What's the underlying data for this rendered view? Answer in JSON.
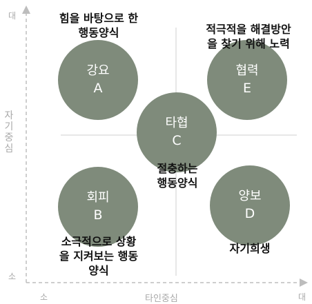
{
  "axes": {
    "y_title": "자기중심",
    "y_top": "대",
    "y_bottom": "소",
    "x_title": "타인중심",
    "x_left": "소",
    "x_right": "대",
    "axis_color": "#bdbdbd"
  },
  "styles": {
    "circle_color": "#7f8b7b",
    "circle_text_color": "#ffffff",
    "desc_text_color": "#111111"
  },
  "circles": {
    "a": {
      "name": "강요",
      "letter": "A"
    },
    "e": {
      "name": "협력",
      "letter": "E"
    },
    "c": {
      "name": "타협",
      "letter": "C"
    },
    "b": {
      "name": "회피",
      "letter": "B"
    },
    "d": {
      "name": "양보",
      "letter": "D"
    }
  },
  "descriptions": {
    "a": [
      "힘을 바탕으로 한",
      "행동양식"
    ],
    "e": [
      "적극적을 해결방안",
      "을 찾기 위해 노력"
    ],
    "c": [
      "절충하는",
      "행동양식"
    ],
    "b": [
      "소극적으로 상황",
      "을 지켜보는 행동",
      "양식"
    ],
    "d": [
      "자기희생"
    ]
  }
}
